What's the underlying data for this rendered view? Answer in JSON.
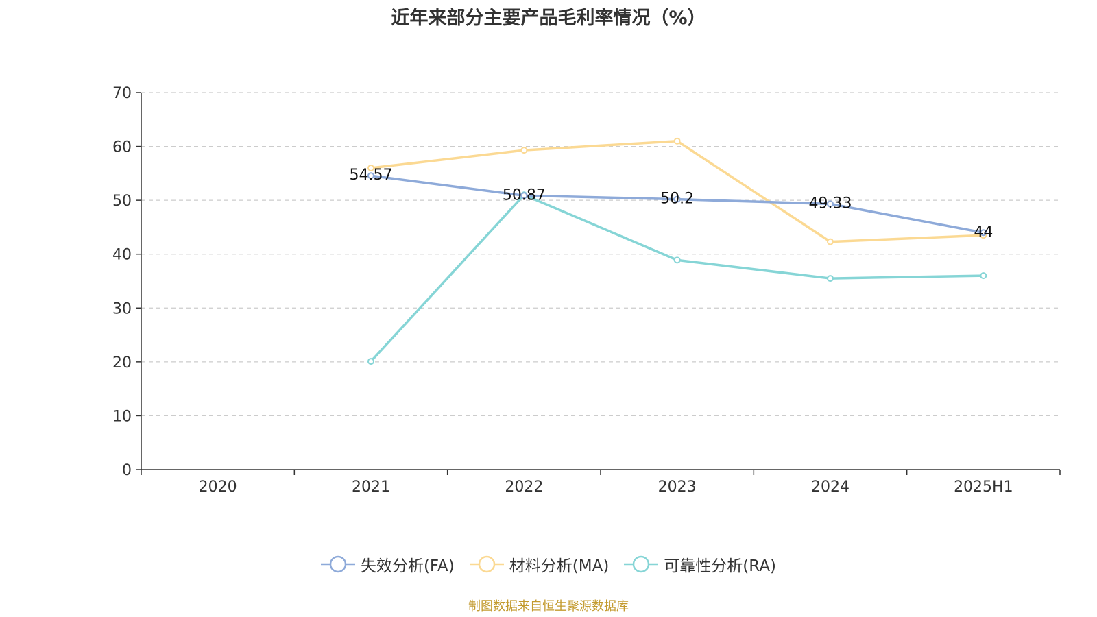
{
  "chart_data": {
    "type": "line",
    "title": "近年来部分主要产品毛利率情况（%）",
    "categories": [
      "2020",
      "2021",
      "2022",
      "2023",
      "2024",
      "2025H1"
    ],
    "ylim": [
      0,
      70
    ],
    "yticks": [
      0,
      10,
      20,
      30,
      40,
      50,
      60,
      70
    ],
    "grid": true,
    "legend_position": "bottom",
    "series": [
      {
        "name": "失效分析(FA)",
        "color": "#8eaad9",
        "values": [
          null,
          54.57,
          50.87,
          50.2,
          49.33,
          44
        ],
        "labels": [
          "",
          "54.57",
          "50.87",
          "50.2",
          "49.33",
          "44"
        ]
      },
      {
        "name": "材料分析(MA)",
        "color": "#fbd993",
        "values": [
          null,
          56.0,
          59.3,
          61.0,
          42.3,
          43.5
        ],
        "labels": []
      },
      {
        "name": "可靠性分析(RA)",
        "color": "#86d5d6",
        "values": [
          null,
          20.1,
          51.0,
          38.9,
          35.5,
          36.0
        ],
        "labels": []
      }
    ]
  },
  "source_note": "制图数据来自恒生聚源数据库"
}
